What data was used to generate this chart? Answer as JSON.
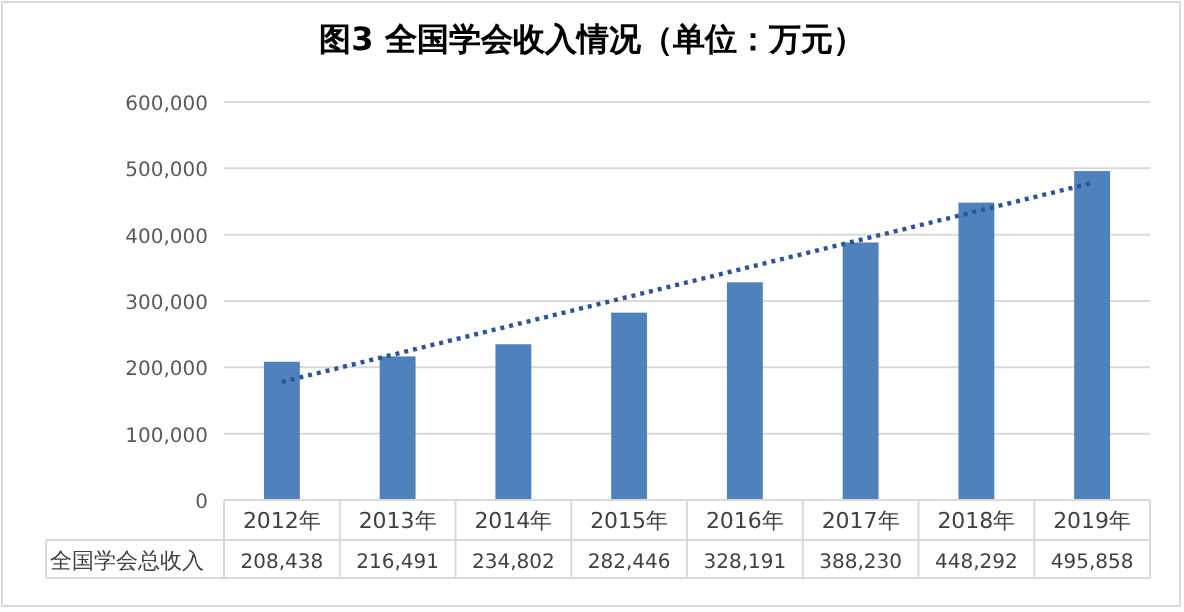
{
  "chart_data": {
    "type": "bar",
    "title": "图3 全国学会收入情况（单位：万元）",
    "categories": [
      "2012年",
      "2013年",
      "2014年",
      "2015年",
      "2016年",
      "2017年",
      "2018年",
      "2019年"
    ],
    "series": [
      {
        "name": "全国学会总收入",
        "color": "#4f81bd",
        "values": [
          208438,
          216491,
          234802,
          282446,
          328191,
          388230,
          448292,
          495858
        ],
        "value_labels": [
          "208,438",
          "216,491",
          "234,802",
          "282,446",
          "328,191",
          "388,230",
          "448,292",
          "495,858"
        ]
      },
      {
        "type": "line",
        "color": "#2a5599",
        "line_style": "dotted",
        "x": [
          "2012年",
          "2019年"
        ],
        "values": [
          178000,
          478000
        ]
      }
    ],
    "ylim": [
      0,
      600000
    ],
    "yticks": [
      0,
      {
        "value": 100000,
        "label": "100,000"
      },
      {
        "value": 200000,
        "label": "200,000"
      },
      {
        "value": 300000,
        "label": "300,000"
      },
      {
        "value": 400000,
        "label": "400,000"
      },
      {
        "value": 500000,
        "label": "500,000"
      },
      {
        "value": 600000,
        "label": "600,000"
      }
    ],
    "grid": "y"
  }
}
